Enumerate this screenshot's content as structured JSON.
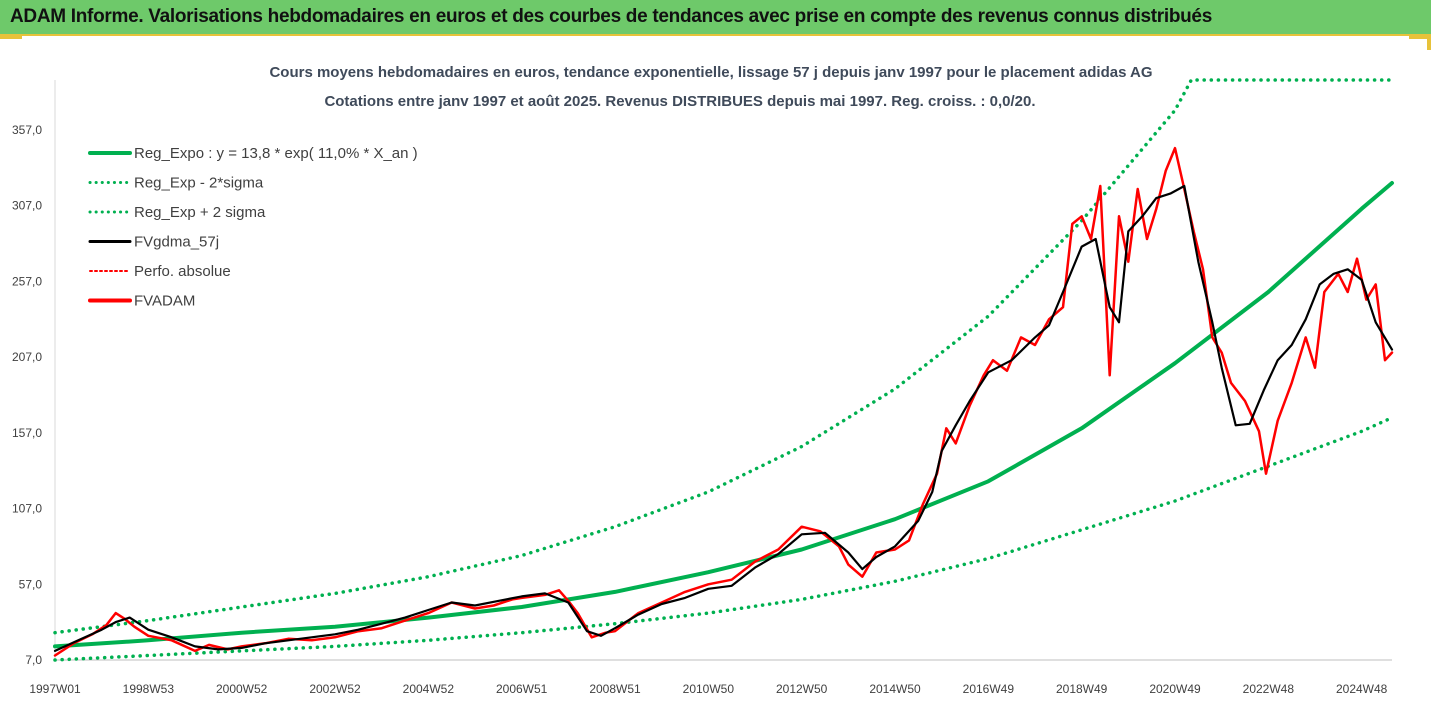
{
  "header": {
    "title": "ADAM Informe. Valorisations hebdomadaires en euros et des courbes de tendances avec prise en compte des revenus connus distribués"
  },
  "colors": {
    "banner": "#6ec96a",
    "frame": "#e7c23a",
    "trend": "#00b050",
    "smooth": "#000000",
    "price": "#ff0000"
  },
  "chart_data": {
    "type": "line",
    "title": "Cours moyens hebdomadaires en euros, tendance exponentielle, lissage 57 j depuis janv 1997 pour le placement adidas AG",
    "subtitle": "Cotations entre janv 1997 et août 2025. Revenus DISTRIBUES depuis mai 1997. Reg. croiss. : 0,0/20.",
    "x_range": [
      1997.0,
      2025.65
    ],
    "ylim": [
      7.0,
      390.0
    ],
    "y_ticks": [
      "7,0",
      "57,0",
      "107,0",
      "157,0",
      "207,0",
      "257,0",
      "307,0",
      "357,0"
    ],
    "y_tick_values": [
      7,
      57,
      107,
      157,
      207,
      257,
      307,
      357
    ],
    "x_ticks": [
      "1997W01",
      "1998W53",
      "2000W52",
      "2002W52",
      "2004W52",
      "2006W51",
      "2008W51",
      "2010W50",
      "2012W50",
      "2014W50",
      "2016W49",
      "2018W49",
      "2020W49",
      "2022W48",
      "2024W48"
    ],
    "x_tick_values": [
      1997.0,
      1999.0,
      2001.0,
      2003.0,
      2005.0,
      2007.0,
      2009.0,
      2011.0,
      2013.0,
      2015.0,
      2017.0,
      2019.0,
      2021.0,
      2023.0,
      2025.0
    ],
    "legend": [
      {
        "name": "Reg_Expo : y = 13,8 * exp( 11,0% *  X_an )",
        "style": "solid",
        "color": "#00b050"
      },
      {
        "name": "Reg_Exp - 2*sigma",
        "style": "dotted",
        "color": "#00b050"
      },
      {
        "name": "Reg_Exp + 2 sigma",
        "style": "dotted",
        "color": "#00b050"
      },
      {
        "name": "FVgdma_57j",
        "style": "solid",
        "color": "#000000"
      },
      {
        "name": "Perfo. absolue",
        "style": "dotted",
        "color": "#ff0000"
      },
      {
        "name": "FVADAM",
        "style": "solid",
        "color": "#ff0000"
      }
    ],
    "legend_position": "top-left",
    "series": [
      {
        "name": "Reg_Expo : y = 13,8 * exp( 11,0% *  X_an )",
        "x": [
          1997.0,
          1999.0,
          2001.0,
          2003.0,
          2005.0,
          2007.0,
          2009.0,
          2011.0,
          2013.0,
          2015.0,
          2017.0,
          2019.0,
          2021.0,
          2023.0,
          2025.0,
          2025.65
        ],
        "y": [
          16,
          20,
          25,
          29,
          35,
          42,
          52,
          65,
          80,
          100,
          125,
          160,
          203,
          250,
          305,
          322
        ]
      },
      {
        "name": "Reg_Exp - 2*sigma",
        "x": [
          1997.0,
          1999.0,
          2001.0,
          2003.0,
          2005.0,
          2007.0,
          2009.0,
          2011.0,
          2013.0,
          2015.0,
          2017.0,
          2019.0,
          2021.0,
          2023.0,
          2025.0,
          2025.65
        ],
        "y": [
          7,
          10,
          13,
          16,
          20,
          25,
          31,
          38,
          47,
          59,
          74,
          93,
          112,
          135,
          158,
          167
        ]
      },
      {
        "name": "Reg_Exp + 2 sigma",
        "x": [
          1997.0,
          1999.0,
          2001.0,
          2003.0,
          2005.0,
          2007.0,
          2009.0,
          2011.0,
          2013.0,
          2015.0,
          2017.0,
          2019.0,
          2021.0,
          2021.35,
          2025.65
        ],
        "y": [
          25,
          33,
          42,
          51,
          62,
          76,
          95,
          118,
          148,
          186,
          234,
          297,
          370,
          390,
          390
        ]
      },
      {
        "name": "FVgdma_57j",
        "x": [
          1997.0,
          1997.5,
          1998.0,
          1998.3,
          1998.6,
          1999.0,
          1999.5,
          2000.0,
          2000.5,
          2001.0,
          2001.5,
          2002.0,
          2002.5,
          2003.0,
          2003.5,
          2004.0,
          2004.5,
          2005.0,
          2005.5,
          2006.0,
          2006.5,
          2007.0,
          2007.5,
          2008.0,
          2008.4,
          2008.7,
          2009.0,
          2009.5,
          2010.0,
          2010.5,
          2011.0,
          2011.5,
          2012.0,
          2012.5,
          2013.0,
          2013.5,
          2014.0,
          2014.3,
          2014.6,
          2015.0,
          2015.5,
          2015.8,
          2016.0,
          2016.3,
          2016.6,
          2017.0,
          2017.5,
          2018.0,
          2018.3,
          2018.6,
          2019.0,
          2019.3,
          2019.6,
          2019.8,
          2020.0,
          2020.3,
          2020.6,
          2020.9,
          2021.2,
          2021.5,
          2021.8,
          2022.0,
          2022.3,
          2022.6,
          2022.9,
          2023.2,
          2023.5,
          2023.8,
          2024.1,
          2024.4,
          2024.7,
          2025.0,
          2025.3,
          2025.65
        ],
        "y": [
          13,
          20,
          27,
          32,
          35,
          27,
          22,
          16,
          14,
          15,
          18,
          20,
          22,
          24,
          27,
          31,
          35,
          40,
          45,
          43,
          46,
          49,
          51,
          45,
          26,
          23,
          28,
          37,
          44,
          48,
          54,
          56,
          68,
          77,
          90,
          91,
          78,
          67,
          75,
          82,
          99,
          118,
          145,
          162,
          178,
          197,
          205,
          220,
          228,
          250,
          280,
          285,
          240,
          230,
          290,
          300,
          312,
          315,
          320,
          270,
          230,
          200,
          162,
          163,
          185,
          205,
          215,
          232,
          255,
          262,
          265,
          258,
          230,
          212
        ]
      },
      {
        "name": "FVADAM",
        "x": [
          1997.0,
          1997.4,
          1997.8,
          1998.1,
          1998.3,
          1998.5,
          1998.7,
          1999.0,
          1999.5,
          2000.0,
          2000.3,
          2000.7,
          2001.0,
          2001.5,
          2002.0,
          2002.5,
          2003.0,
          2003.5,
          2004.0,
          2004.5,
          2005.0,
          2005.5,
          2006.0,
          2006.4,
          2006.8,
          2007.0,
          2007.5,
          2007.8,
          2008.0,
          2008.2,
          2008.5,
          2008.8,
          2009.0,
          2009.5,
          2010.0,
          2010.5,
          2011.0,
          2011.5,
          2012.0,
          2012.5,
          2013.0,
          2013.4,
          2013.8,
          2014.0,
          2014.3,
          2014.6,
          2015.0,
          2015.3,
          2015.6,
          2015.9,
          2016.1,
          2016.3,
          2016.6,
          2016.9,
          2017.1,
          2017.4,
          2017.7,
          2018.0,
          2018.3,
          2018.6,
          2018.8,
          2019.0,
          2019.2,
          2019.4,
          2019.6,
          2019.8,
          2020.0,
          2020.2,
          2020.4,
          2020.6,
          2020.8,
          2021.0,
          2021.2,
          2021.4,
          2021.6,
          2021.8,
          2022.0,
          2022.2,
          2022.5,
          2022.8,
          2022.95,
          2023.2,
          2023.5,
          2023.8,
          2024.0,
          2024.2,
          2024.5,
          2024.7,
          2024.9,
          2025.1,
          2025.3,
          2025.5,
          2025.65
        ],
        "y": [
          10,
          18,
          24,
          30,
          38,
          34,
          29,
          23,
          20,
          13,
          17,
          14,
          16,
          18,
          21,
          20,
          22,
          26,
          28,
          33,
          38,
          45,
          41,
          43,
          47,
          48,
          50,
          53,
          46,
          38,
          22,
          25,
          26,
          38,
          45,
          52,
          57,
          60,
          72,
          80,
          95,
          92,
          82,
          70,
          62,
          78,
          80,
          86,
          110,
          130,
          160,
          150,
          175,
          195,
          205,
          198,
          220,
          215,
          232,
          240,
          295,
          300,
          285,
          320,
          195,
          300,
          270,
          318,
          285,
          305,
          330,
          345,
          318,
          290,
          265,
          220,
          210,
          190,
          178,
          158,
          130,
          165,
          190,
          220,
          200,
          250,
          262,
          250,
          272,
          245,
          255,
          205,
          210
        ]
      }
    ]
  }
}
